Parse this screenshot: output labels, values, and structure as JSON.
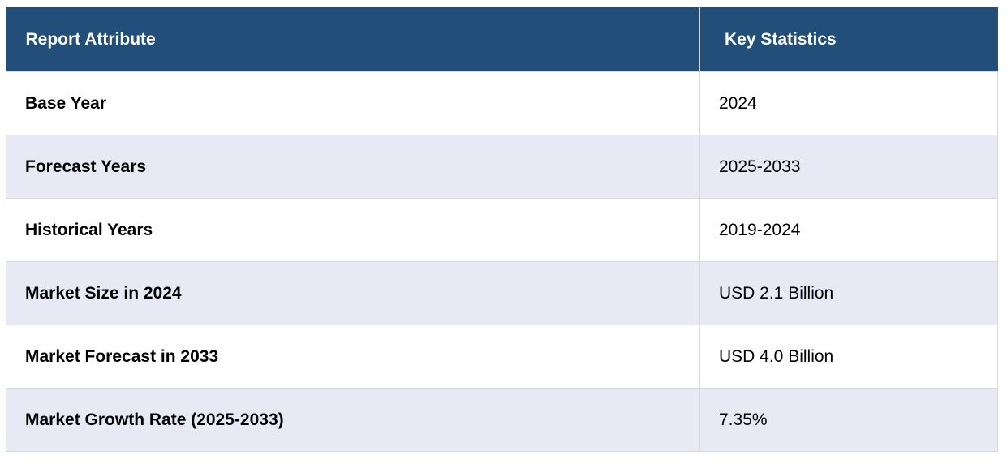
{
  "table": {
    "headers": [
      "Report Attribute",
      "Key Statistics"
    ],
    "rows": [
      [
        "Base Year",
        "2024"
      ],
      [
        "Forecast Years",
        "2025-2033"
      ],
      [
        "Historical Years",
        "2019-2024"
      ],
      [
        "Market Size in 2024",
        "USD 2.1 Billion"
      ],
      [
        "Market Forecast in 2033",
        "USD 4.0 Billion"
      ],
      [
        "Market Growth Rate (2025-2033)",
        "7.35%"
      ]
    ]
  },
  "colors": {
    "header_bg": "#214f79",
    "header_text": "#ffffff",
    "row_alt_bg": "#e8e9f5",
    "row_bg": "#ffffff"
  }
}
